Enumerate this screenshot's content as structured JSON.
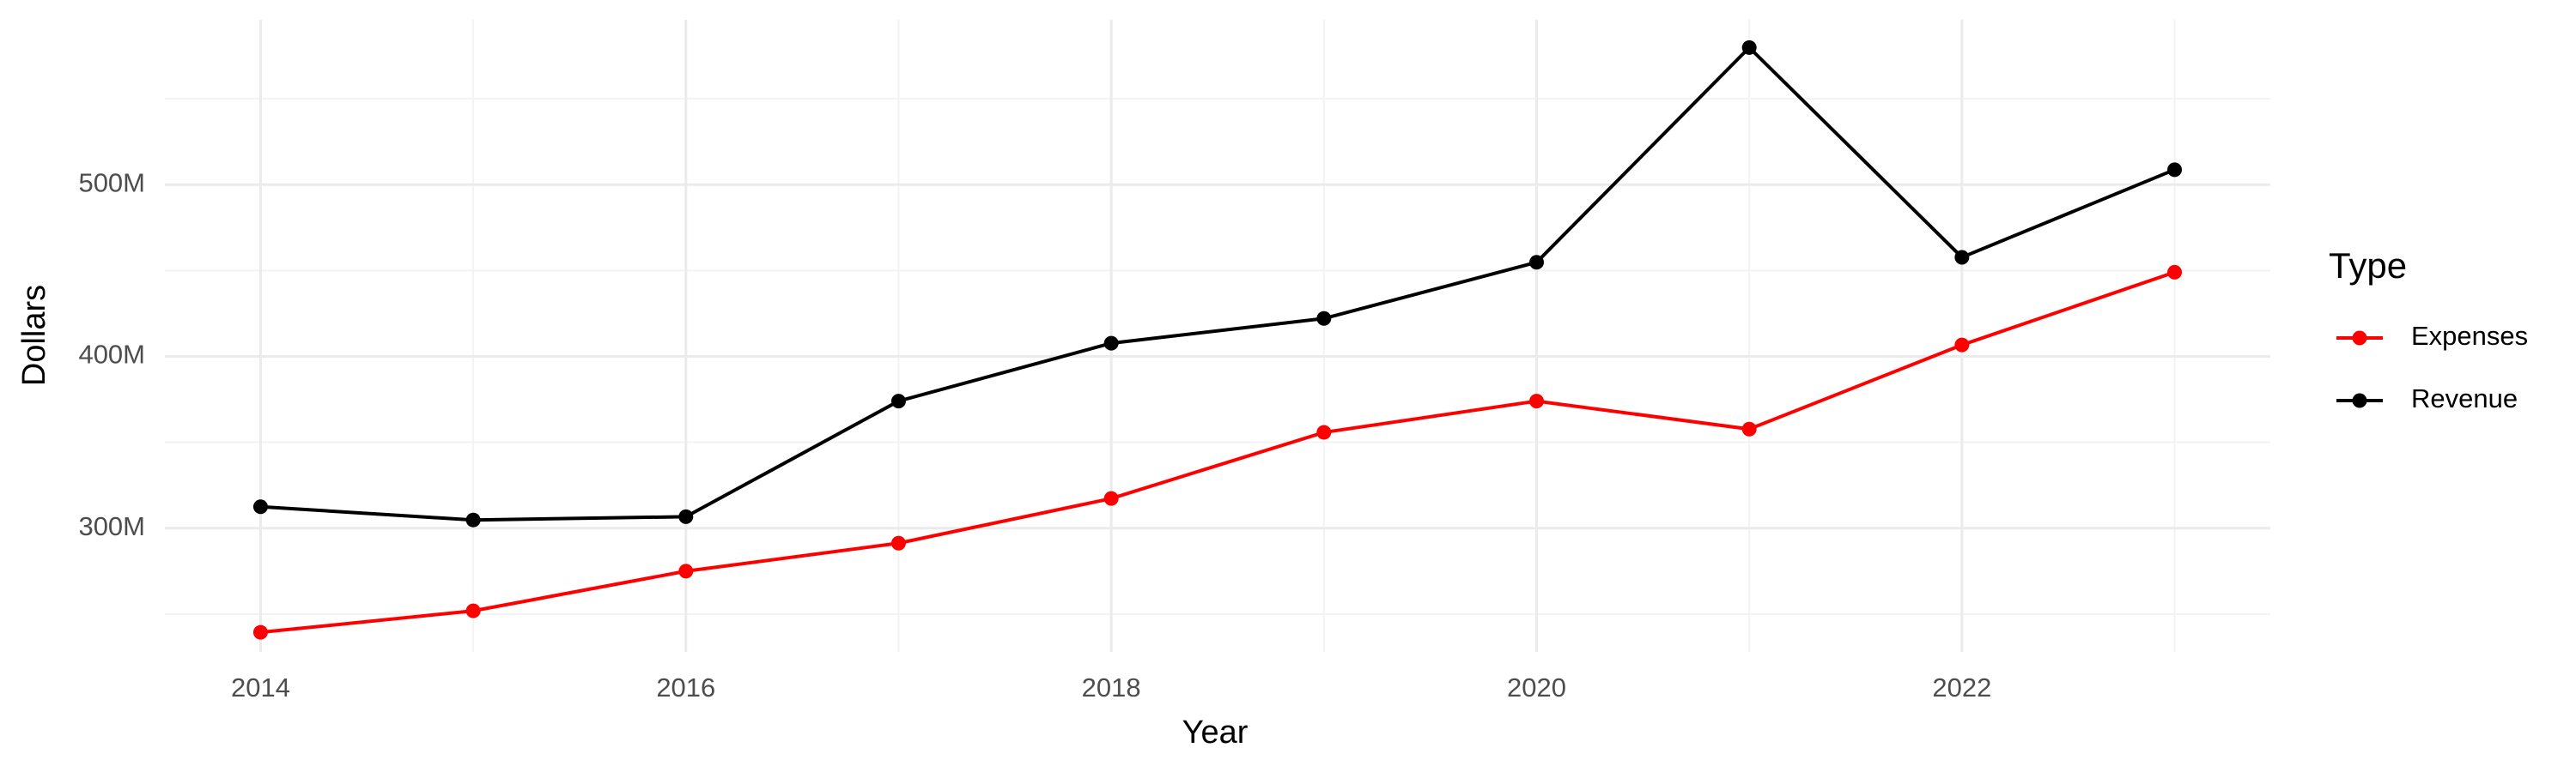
{
  "chart_data": {
    "type": "line",
    "x_label": "Year",
    "y_label": "Dollars",
    "x": [
      2014,
      2015,
      2016,
      2017,
      2018,
      2019,
      2020,
      2021,
      2022,
      2023
    ],
    "series": [
      {
        "name": "Expenses",
        "color": "#ff0000",
        "values": [
          239400000,
          251900000,
          275000000,
          291300000,
          317300000,
          355800000,
          374000000,
          357700000,
          406700000,
          449000000
        ]
      },
      {
        "name": "Revenue",
        "color": "#000000",
        "values": [
          312500000,
          304800000,
          306700000,
          374000000,
          407700000,
          422100000,
          454800000,
          579800000,
          457700000,
          508700000
        ]
      }
    ],
    "xlim": [
      2013.55,
      2023.45
    ],
    "xticks": [
      2014,
      2016,
      2018,
      2020,
      2022
    ],
    "xminorticks": [
      2015,
      2017,
      2019,
      2021,
      2023
    ],
    "ylim": [
      228000000,
      596000000
    ],
    "yticks": [
      {
        "value": 300000000,
        "label": "300M"
      },
      {
        "value": 400000000,
        "label": "400M"
      },
      {
        "value": 500000000,
        "label": "500M"
      }
    ],
    "yminorticks": [
      250000000,
      350000000,
      450000000,
      550000000
    ],
    "grid": true,
    "legend_title": "Type",
    "legend": "right"
  }
}
